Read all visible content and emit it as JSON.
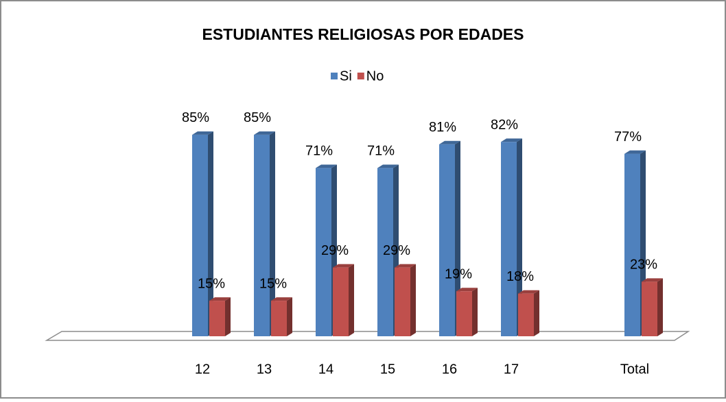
{
  "chart_data": {
    "type": "bar3d",
    "title": "ESTUDIANTES RELIGIOSAS POR EDADES",
    "categories": [
      null,
      null,
      "12",
      "13",
      "14",
      "15",
      "16",
      "17",
      null,
      "Total"
    ],
    "series": [
      {
        "name": "Si",
        "color": "#4f81bd",
        "values": [
          null,
          null,
          85,
          85,
          71,
          71,
          81,
          82,
          null,
          77
        ],
        "value_labels": [
          null,
          null,
          "85%",
          "85%",
          "71%",
          "71%",
          "81%",
          "82%",
          null,
          "77%"
        ]
      },
      {
        "name": "No",
        "color": "#c0504d",
        "values": [
          null,
          null,
          15,
          15,
          29,
          29,
          19,
          18,
          null,
          23
        ],
        "value_labels": [
          null,
          null,
          "15%",
          "15%",
          "29%",
          "29%",
          "19%",
          "18%",
          null,
          "23%"
        ]
      }
    ],
    "legend": "top"
  }
}
